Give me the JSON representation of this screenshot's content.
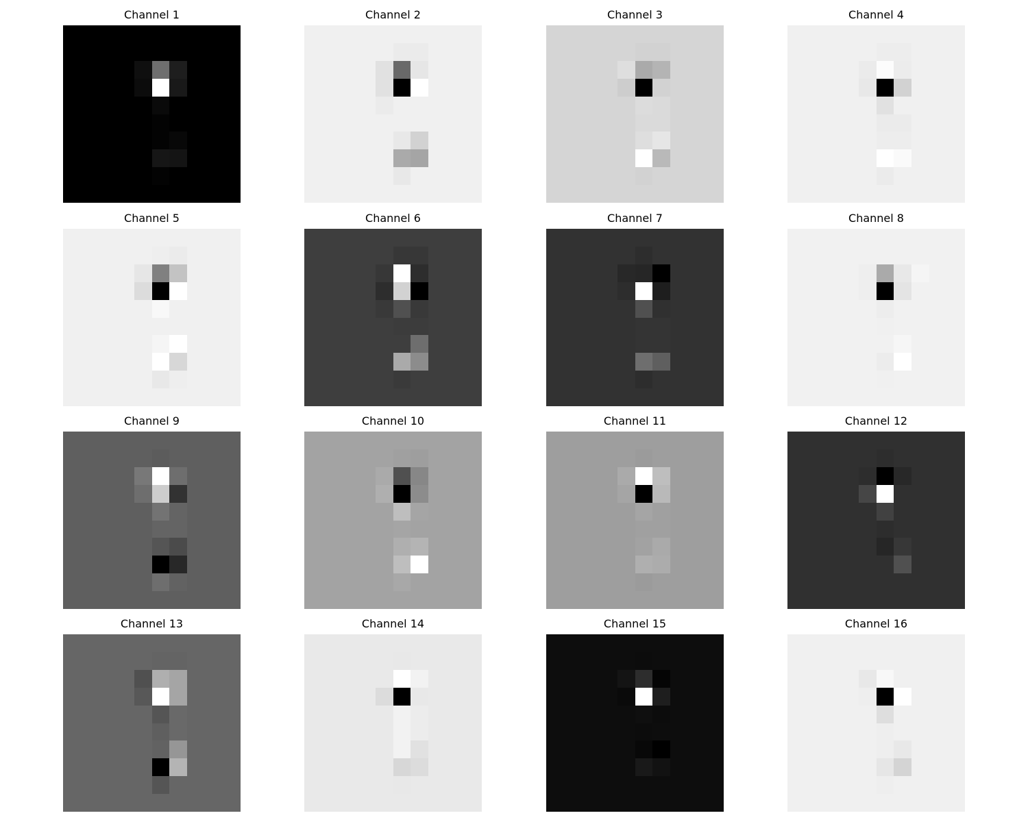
{
  "chart_data": [
    {
      "type": "heatmap",
      "title": "Channel 1",
      "grid": false,
      "value_range": [
        0,
        255
      ],
      "background": 0,
      "cells": [
        [
          2,
          4,
          15
        ],
        [
          2,
          5,
          110
        ],
        [
          2,
          6,
          30
        ],
        [
          3,
          4,
          12
        ],
        [
          3,
          5,
          255
        ],
        [
          3,
          6,
          25
        ],
        [
          4,
          5,
          10
        ],
        [
          5,
          5,
          3
        ],
        [
          6,
          5,
          3
        ],
        [
          6,
          6,
          8
        ],
        [
          7,
          5,
          22
        ],
        [
          7,
          6,
          20
        ],
        [
          8,
          5,
          3
        ]
      ]
    },
    {
      "type": "heatmap",
      "title": "Channel 2",
      "grid": false,
      "value_range": [
        0,
        255
      ],
      "background": 240,
      "cells": [
        [
          1,
          5,
          235
        ],
        [
          1,
          6,
          235
        ],
        [
          2,
          4,
          225
        ],
        [
          2,
          5,
          105
        ],
        [
          2,
          6,
          230
        ],
        [
          3,
          4,
          225
        ],
        [
          3,
          5,
          0
        ],
        [
          3,
          6,
          255
        ],
        [
          4,
          4,
          235
        ],
        [
          4,
          5,
          240
        ],
        [
          4,
          6,
          240
        ],
        [
          5,
          5,
          240
        ],
        [
          6,
          5,
          232
        ],
        [
          6,
          6,
          210
        ],
        [
          7,
          5,
          170
        ],
        [
          7,
          6,
          165
        ],
        [
          8,
          5,
          232
        ]
      ]
    },
    {
      "type": "heatmap",
      "title": "Channel 3",
      "grid": false,
      "value_range": [
        0,
        255
      ],
      "background": 213,
      "cells": [
        [
          1,
          5,
          210
        ],
        [
          1,
          6,
          210
        ],
        [
          2,
          4,
          222
        ],
        [
          2,
          5,
          170
        ],
        [
          2,
          6,
          180
        ],
        [
          3,
          4,
          205
        ],
        [
          3,
          5,
          0
        ],
        [
          3,
          6,
          210
        ],
        [
          4,
          5,
          220
        ],
        [
          4,
          6,
          218
        ],
        [
          5,
          5,
          218
        ],
        [
          5,
          6,
          218
        ],
        [
          6,
          5,
          222
        ],
        [
          6,
          6,
          230
        ],
        [
          7,
          5,
          255
        ],
        [
          7,
          6,
          185
        ],
        [
          8,
          5,
          210
        ]
      ]
    },
    {
      "type": "heatmap",
      "title": "Channel 4",
      "grid": false,
      "value_range": [
        0,
        255
      ],
      "background": 240,
      "cells": [
        [
          1,
          5,
          237
        ],
        [
          1,
          6,
          237
        ],
        [
          2,
          4,
          235
        ],
        [
          2,
          5,
          252
        ],
        [
          2,
          6,
          236
        ],
        [
          3,
          4,
          232
        ],
        [
          3,
          5,
          0
        ],
        [
          3,
          6,
          210
        ],
        [
          4,
          5,
          225
        ],
        [
          5,
          5,
          235
        ],
        [
          5,
          6,
          235
        ],
        [
          6,
          5,
          237
        ],
        [
          6,
          6,
          237
        ],
        [
          7,
          5,
          255
        ],
        [
          7,
          6,
          250
        ],
        [
          8,
          5,
          235
        ]
      ]
    },
    {
      "type": "heatmap",
      "title": "Channel 5",
      "grid": false,
      "value_range": [
        0,
        255
      ],
      "background": 240,
      "cells": [
        [
          1,
          5,
          238
        ],
        [
          1,
          6,
          235
        ],
        [
          2,
          4,
          230
        ],
        [
          2,
          5,
          128
        ],
        [
          2,
          6,
          195
        ],
        [
          3,
          4,
          220
        ],
        [
          3,
          5,
          0
        ],
        [
          3,
          6,
          255
        ],
        [
          4,
          5,
          248
        ],
        [
          4,
          6,
          240
        ],
        [
          5,
          5,
          240
        ],
        [
          6,
          5,
          245
        ],
        [
          6,
          6,
          255
        ],
        [
          7,
          5,
          255
        ],
        [
          7,
          6,
          215
        ],
        [
          8,
          5,
          232
        ],
        [
          8,
          6,
          238
        ]
      ]
    },
    {
      "type": "heatmap",
      "title": "Channel 6",
      "grid": false,
      "value_range": [
        0,
        255
      ],
      "background": 62,
      "cells": [
        [
          1,
          5,
          55
        ],
        [
          1,
          6,
          55
        ],
        [
          2,
          4,
          55
        ],
        [
          2,
          5,
          255
        ],
        [
          2,
          6,
          45
        ],
        [
          3,
          4,
          45
        ],
        [
          3,
          5,
          210
        ],
        [
          3,
          6,
          0
        ],
        [
          4,
          4,
          57
        ],
        [
          4,
          5,
          80
        ],
        [
          4,
          6,
          57
        ],
        [
          5,
          5,
          60
        ],
        [
          5,
          6,
          60
        ],
        [
          6,
          5,
          62
        ],
        [
          6,
          6,
          110
        ],
        [
          7,
          5,
          170
        ],
        [
          7,
          6,
          140
        ],
        [
          8,
          5,
          58
        ]
      ]
    },
    {
      "type": "heatmap",
      "title": "Channel 7",
      "grid": false,
      "value_range": [
        0,
        255
      ],
      "background": 50,
      "cells": [
        [
          1,
          5,
          45
        ],
        [
          2,
          4,
          40
        ],
        [
          2,
          5,
          38
        ],
        [
          2,
          6,
          0
        ],
        [
          3,
          4,
          45
        ],
        [
          3,
          5,
          255
        ],
        [
          3,
          6,
          30
        ],
        [
          4,
          5,
          80
        ],
        [
          4,
          6,
          48
        ],
        [
          5,
          5,
          52
        ],
        [
          5,
          6,
          52
        ],
        [
          6,
          5,
          52
        ],
        [
          6,
          6,
          52
        ],
        [
          7,
          5,
          110
        ],
        [
          7,
          6,
          95
        ],
        [
          8,
          5,
          45
        ]
      ]
    },
    {
      "type": "heatmap",
      "title": "Channel 8",
      "grid": false,
      "value_range": [
        0,
        255
      ],
      "background": 241,
      "cells": [
        [
          2,
          4,
          238
        ],
        [
          2,
          5,
          170
        ],
        [
          2,
          6,
          232
        ],
        [
          2,
          7,
          245
        ],
        [
          3,
          4,
          238
        ],
        [
          3,
          5,
          0
        ],
        [
          3,
          6,
          228
        ],
        [
          4,
          5,
          237
        ],
        [
          5,
          5,
          240
        ],
        [
          6,
          5,
          241
        ],
        [
          6,
          6,
          246
        ],
        [
          7,
          5,
          236
        ],
        [
          7,
          6,
          255
        ],
        [
          8,
          5,
          240
        ]
      ]
    },
    {
      "type": "heatmap",
      "title": "Channel 9",
      "grid": false,
      "value_range": [
        0,
        255
      ],
      "background": 95,
      "cells": [
        [
          1,
          5,
          92
        ],
        [
          2,
          4,
          120
        ],
        [
          2,
          5,
          255
        ],
        [
          2,
          6,
          110
        ],
        [
          3,
          4,
          110
        ],
        [
          3,
          5,
          205
        ],
        [
          3,
          6,
          50
        ],
        [
          4,
          5,
          115
        ],
        [
          4,
          6,
          100
        ],
        [
          5,
          5,
          100
        ],
        [
          5,
          6,
          100
        ],
        [
          6,
          5,
          85
        ],
        [
          6,
          6,
          75
        ],
        [
          7,
          5,
          0
        ],
        [
          7,
          6,
          40
        ],
        [
          8,
          5,
          110
        ],
        [
          8,
          6,
          98
        ]
      ]
    },
    {
      "type": "heatmap",
      "title": "Channel 10",
      "grid": false,
      "value_range": [
        0,
        255
      ],
      "background": 163,
      "cells": [
        [
          1,
          5,
          160
        ],
        [
          1,
          6,
          158
        ],
        [
          2,
          4,
          170
        ],
        [
          2,
          5,
          80
        ],
        [
          2,
          6,
          135
        ],
        [
          3,
          4,
          175
        ],
        [
          3,
          5,
          0
        ],
        [
          3,
          6,
          140
        ],
        [
          4,
          5,
          190
        ],
        [
          4,
          6,
          165
        ],
        [
          5,
          5,
          165
        ],
        [
          6,
          5,
          175
        ],
        [
          6,
          6,
          180
        ],
        [
          7,
          5,
          190
        ],
        [
          7,
          6,
          255
        ],
        [
          8,
          5,
          168
        ]
      ]
    },
    {
      "type": "heatmap",
      "title": "Channel 11",
      "grid": false,
      "value_range": [
        0,
        255
      ],
      "background": 158,
      "cells": [
        [
          1,
          5,
          155
        ],
        [
          2,
          4,
          170
        ],
        [
          2,
          5,
          255
        ],
        [
          2,
          6,
          190
        ],
        [
          3,
          4,
          165
        ],
        [
          3,
          5,
          0
        ],
        [
          3,
          6,
          185
        ],
        [
          4,
          5,
          165
        ],
        [
          4,
          6,
          160
        ],
        [
          5,
          5,
          160
        ],
        [
          5,
          6,
          160
        ],
        [
          6,
          5,
          162
        ],
        [
          6,
          6,
          170
        ],
        [
          7,
          5,
          175
        ],
        [
          7,
          6,
          172
        ],
        [
          8,
          5,
          155
        ]
      ]
    },
    {
      "type": "heatmap",
      "title": "Channel 12",
      "grid": false,
      "value_range": [
        0,
        255
      ],
      "background": 48,
      "cells": [
        [
          1,
          5,
          45
        ],
        [
          2,
          4,
          45
        ],
        [
          2,
          5,
          0
        ],
        [
          2,
          6,
          40
        ],
        [
          3,
          4,
          70
        ],
        [
          3,
          5,
          255
        ],
        [
          3,
          6,
          48
        ],
        [
          4,
          5,
          65
        ],
        [
          5,
          5,
          45
        ],
        [
          6,
          5,
          38
        ],
        [
          6,
          6,
          55
        ],
        [
          7,
          6,
          80
        ]
      ]
    },
    {
      "type": "heatmap",
      "title": "Channel 13",
      "grid": false,
      "value_range": [
        0,
        255
      ],
      "background": 102,
      "cells": [
        [
          1,
          5,
          100
        ],
        [
          1,
          6,
          100
        ],
        [
          2,
          4,
          80
        ],
        [
          2,
          5,
          175
        ],
        [
          2,
          6,
          165
        ],
        [
          3,
          4,
          88
        ],
        [
          3,
          5,
          255
        ],
        [
          3,
          6,
          165
        ],
        [
          4,
          5,
          85
        ],
        [
          4,
          6,
          105
        ],
        [
          5,
          5,
          95
        ],
        [
          5,
          6,
          105
        ],
        [
          6,
          5,
          98
        ],
        [
          6,
          6,
          150
        ],
        [
          7,
          5,
          0
        ],
        [
          7,
          6,
          180
        ],
        [
          8,
          5,
          85
        ]
      ]
    },
    {
      "type": "heatmap",
      "title": "Channel 14",
      "grid": false,
      "value_range": [
        0,
        255
      ],
      "background": 233,
      "cells": [
        [
          1,
          5,
          232
        ],
        [
          2,
          5,
          255
        ],
        [
          2,
          6,
          242
        ],
        [
          3,
          4,
          220
        ],
        [
          3,
          5,
          0
        ],
        [
          3,
          6,
          232
        ],
        [
          4,
          5,
          242
        ],
        [
          4,
          6,
          236
        ],
        [
          5,
          5,
          242
        ],
        [
          5,
          6,
          236
        ],
        [
          6,
          5,
          242
        ],
        [
          6,
          6,
          225
        ],
        [
          7,
          5,
          215
        ],
        [
          7,
          6,
          220
        ],
        [
          8,
          5,
          232
        ]
      ]
    },
    {
      "type": "heatmap",
      "title": "Channel 15",
      "grid": false,
      "value_range": [
        0,
        255
      ],
      "background": 13,
      "cells": [
        [
          1,
          5,
          12
        ],
        [
          2,
          4,
          20
        ],
        [
          2,
          5,
          45
        ],
        [
          2,
          6,
          5
        ],
        [
          3,
          4,
          10
        ],
        [
          3,
          5,
          255
        ],
        [
          3,
          6,
          30
        ],
        [
          4,
          5,
          15
        ],
        [
          4,
          6,
          12
        ],
        [
          5,
          5,
          12
        ],
        [
          6,
          5,
          8
        ],
        [
          6,
          6,
          0
        ],
        [
          7,
          5,
          25
        ],
        [
          7,
          6,
          18
        ],
        [
          8,
          5,
          13
        ]
      ]
    },
    {
      "type": "heatmap",
      "title": "Channel 16",
      "grid": false,
      "value_range": [
        0,
        255
      ],
      "background": 240,
      "cells": [
        [
          1,
          5,
          240
        ],
        [
          2,
          4,
          232
        ],
        [
          2,
          5,
          248
        ],
        [
          2,
          6,
          240
        ],
        [
          3,
          4,
          238
        ],
        [
          3,
          5,
          0
        ],
        [
          3,
          6,
          255
        ],
        [
          4,
          5,
          222
        ],
        [
          5,
          5,
          238
        ],
        [
          6,
          5,
          238
        ],
        [
          6,
          6,
          232
        ],
        [
          7,
          5,
          230
        ],
        [
          7,
          6,
          212
        ],
        [
          8,
          5,
          238
        ]
      ]
    }
  ]
}
